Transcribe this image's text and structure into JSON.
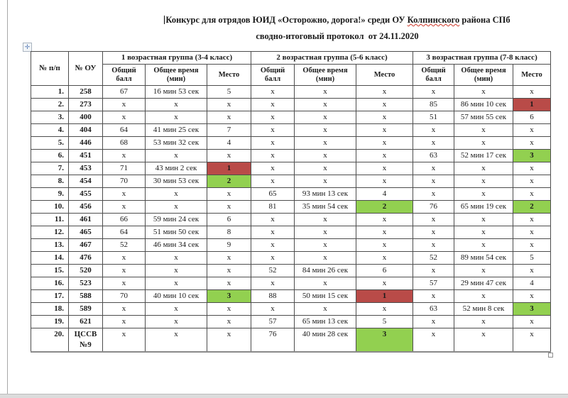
{
  "document": {
    "title_line1_before": "Конкурс для отрядов ЮИД «Осторожно, дорога!» среди ОУ ",
    "title_line1_misspelled": "Колпинского",
    "title_line1_after": " района СПб",
    "title_line2": "сводно-итоговый протокол  от 24.11.2020"
  },
  "icons": {
    "move_handle": "✛"
  },
  "colors": {
    "first_place_red": "#b94b48",
    "prize_place_green": "#92d050",
    "table_border": "#4d4d4d"
  },
  "table": {
    "header": {
      "num": "№ п/п",
      "school": "№ ОУ",
      "groups": [
        "1 возрастная группа (3-4 класс)",
        "2 возрастная группа (5-6 класс)",
        "3 возрастная группа (7-8 класс)"
      ],
      "sub": [
        "Общий балл",
        "Общее время (мин)",
        "Место"
      ]
    },
    "rows": [
      {
        "num": "1.",
        "ou": "258",
        "values": [
          "67",
          "16 мин 53 сек",
          "5",
          "x",
          "x",
          "x",
          "x",
          "x",
          "x"
        ],
        "marks": {}
      },
      {
        "num": "2.",
        "ou": "273",
        "values": [
          "x",
          "x",
          "x",
          "x",
          "x",
          "x",
          "85",
          "86 мин 10 сек",
          "1"
        ],
        "marks": {
          "8": "red"
        }
      },
      {
        "num": "3.",
        "ou": "400",
        "values": [
          "x",
          "x",
          "x",
          "x",
          "x",
          "x",
          "51",
          "57 мин 55 сек",
          "6"
        ],
        "marks": {}
      },
      {
        "num": "4.",
        "ou": "404",
        "values": [
          "64",
          "41 мин 25 сек",
          "7",
          "x",
          "x",
          "x",
          "x",
          "x",
          "x"
        ],
        "marks": {}
      },
      {
        "num": "5.",
        "ou": "446",
        "values": [
          "68",
          "53 мин 32 сек",
          "4",
          "x",
          "x",
          "x",
          "x",
          "x",
          "x"
        ],
        "marks": {}
      },
      {
        "num": "6.",
        "ou": "451",
        "values": [
          "x",
          "x",
          "x",
          "x",
          "x",
          "x",
          "63",
          "52 мин 17 сек",
          "3"
        ],
        "marks": {
          "8": "green"
        }
      },
      {
        "num": "7.",
        "ou": "453",
        "values": [
          "71",
          "43 мин 2 сек",
          "1",
          "x",
          "x",
          "x",
          "x",
          "x",
          "x"
        ],
        "marks": {
          "2": "red"
        }
      },
      {
        "num": "8.",
        "ou": "454",
        "values": [
          "70",
          "30 мин 53 сек",
          "2",
          "x",
          "x",
          "x",
          "x",
          "x",
          "x"
        ],
        "marks": {
          "2": "green"
        }
      },
      {
        "num": "9.",
        "ou": "455",
        "values": [
          "x",
          "x",
          "x",
          "65",
          "93 мин 13 сек",
          "4",
          "x",
          "x",
          "x"
        ],
        "marks": {}
      },
      {
        "num": "10.",
        "ou": "456",
        "values": [
          "x",
          "x",
          "x",
          "81",
          "35 мин 54 сек",
          "2",
          "76",
          "65 мин 19 сек",
          "2"
        ],
        "marks": {
          "5": "green",
          "8": "green"
        }
      },
      {
        "num": "11.",
        "ou": "461",
        "values": [
          "66",
          "59 мин 24 сек",
          "6",
          "x",
          "x",
          "x",
          "x",
          "x",
          "x"
        ],
        "marks": {}
      },
      {
        "num": "12.",
        "ou": "465",
        "values": [
          "64",
          "51 мин 50 сек",
          "8",
          "x",
          "x",
          "x",
          "x",
          "x",
          "x"
        ],
        "marks": {}
      },
      {
        "num": "13.",
        "ou": "467",
        "values": [
          "52",
          "46 мин 34 сек",
          "9",
          "x",
          "x",
          "x",
          "x",
          "x",
          "x"
        ],
        "marks": {}
      },
      {
        "num": "14.",
        "ou": "476",
        "values": [
          "x",
          "x",
          "x",
          "x",
          "x",
          "x",
          "52",
          "89 мин 54 сек",
          "5"
        ],
        "marks": {}
      },
      {
        "num": "15.",
        "ou": "520",
        "values": [
          "x",
          "x",
          "x",
          "52",
          "84 мин 26 сек",
          "6",
          "x",
          "x",
          "x"
        ],
        "marks": {}
      },
      {
        "num": "16.",
        "ou": "523",
        "values": [
          "x",
          "x",
          "x",
          "x",
          "x",
          "x",
          "57",
          "29 мин 47 сек",
          "4"
        ],
        "marks": {}
      },
      {
        "num": "17.",
        "ou": "588",
        "values": [
          "70",
          "40 мин 10 сек",
          "3",
          "88",
          "50 мин 15 сек",
          "1",
          "x",
          "x",
          "x"
        ],
        "marks": {
          "2": "green",
          "5": "red"
        }
      },
      {
        "num": "18.",
        "ou": "589",
        "values": [
          "x",
          "x",
          "x",
          "x",
          "x",
          "x",
          "63",
          "52 мин 8 сек",
          "3"
        ],
        "marks": {
          "8": "green"
        }
      },
      {
        "num": "19.",
        "ou": "621",
        "values": [
          "x",
          "x",
          "x",
          "57",
          "65 мин 13 сек",
          "5",
          "x",
          "x",
          "x"
        ],
        "marks": {}
      },
      {
        "num": "20.",
        "ou": "ЦССВ №9",
        "values": [
          "x",
          "x",
          "x",
          "76",
          "40 мин 28 сек",
          "3",
          "x",
          "x",
          "x"
        ],
        "marks": {
          "5": "green"
        }
      }
    ]
  }
}
